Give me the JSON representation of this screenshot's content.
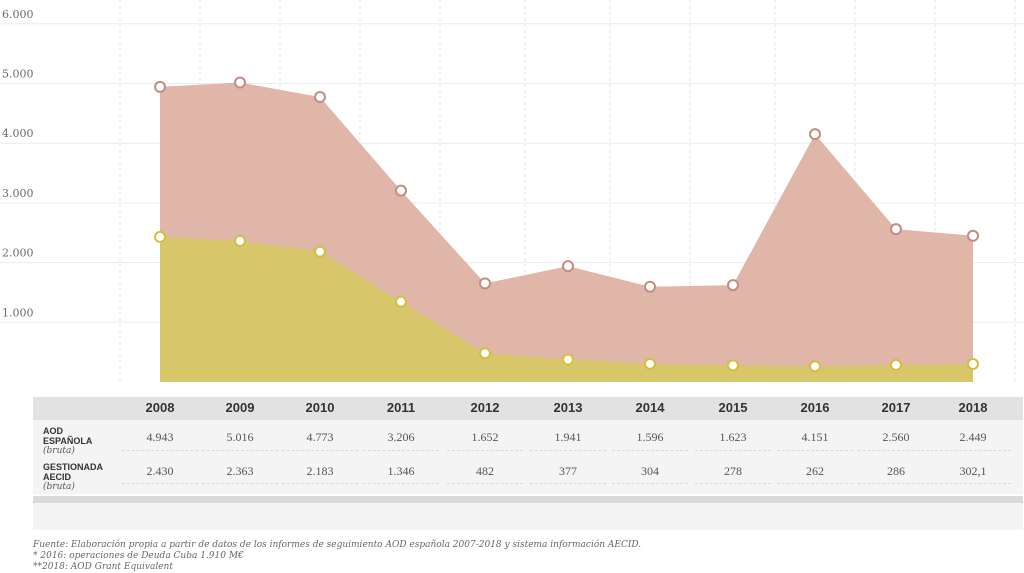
{
  "chart_data": {
    "type": "area",
    "categories": [
      "2008",
      "2009",
      "2010",
      "2011",
      "2012",
      "2013",
      "2014",
      "2015",
      "2016",
      "2017",
      "2018"
    ],
    "series": [
      {
        "name": "AOD ESPAÑOLA (bruta)",
        "values": [
          4943,
          5016,
          4773,
          3206,
          1652,
          1941,
          1596,
          1623,
          4151,
          2560,
          2449
        ],
        "color": "#dfb6a7",
        "marker": "#c48c80"
      },
      {
        "name": "GESTIONADA AECID (bruta)",
        "values": [
          2430,
          2363,
          2183,
          1346,
          482,
          377,
          304,
          278,
          262,
          286,
          302.1
        ],
        "color": "#d7c66a",
        "marker": "#d2bf3b"
      }
    ],
    "ylim": [
      0,
      6000
    ],
    "yticks": [
      "1.000",
      "2.000",
      "3.000",
      "4.000",
      "5.000",
      "6.000"
    ],
    "grid": true
  },
  "table": {
    "rows": [
      {
        "label_main": "AOD",
        "label_main2": "ESPAÑOLA",
        "label_sub": "(bruta)",
        "cells": [
          "4.943",
          "5.016",
          "4.773",
          "3.206",
          "1.652",
          "1.941",
          "1.596",
          "1.623",
          "4.151",
          "2.560",
          "2.449"
        ]
      },
      {
        "label_main": "GESTIONADA",
        "label_main2": "AECID",
        "label_sub": "(bruta)",
        "cells": [
          "2.430",
          "2.363",
          "2.183",
          "1.346",
          "482",
          "377",
          "304",
          "278",
          "262",
          "286",
          "302,1"
        ]
      }
    ]
  },
  "footnotes": {
    "source": "Fuente: Elaboración propia a partir de datos de los informes de seguimiento AOD española 2007-2018 y sistema información AECID.",
    "note1": "* 2016: operaciones de Deuda Cuba 1.910 M€",
    "note2": "**2018: AOD Grant Equivalent"
  }
}
